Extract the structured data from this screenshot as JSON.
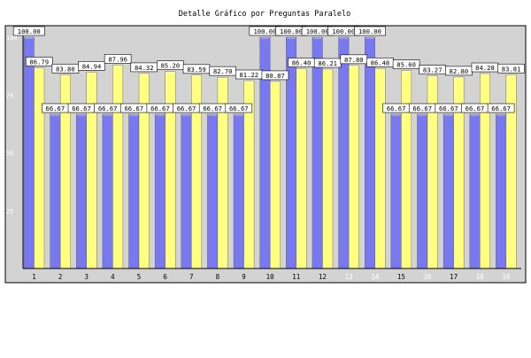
{
  "chart_data": {
    "type": "bar",
    "title": "Detalle Gráfico por Preguntas Paralelo",
    "xlabel": "",
    "ylabel": "",
    "ylim": [
      0,
      100
    ],
    "yticks": [
      25,
      50,
      75,
      100
    ],
    "grid": false,
    "categories": [
      "1",
      "2",
      "3",
      "4",
      "5",
      "6",
      "7",
      "8",
      "9",
      "10",
      "11",
      "12",
      "13",
      "14",
      "15",
      "16",
      "17",
      "18",
      "19"
    ],
    "series": [
      {
        "color": "#7878f0",
        "values": [
          100.0,
          66.67,
          66.67,
          66.67,
          66.67,
          66.67,
          66.67,
          66.67,
          66.67,
          100.0,
          100.0,
          100.0,
          100.0,
          100.0,
          66.67,
          66.67,
          66.67,
          66.67,
          66.67
        ],
        "labels": [
          "100.00",
          "66.67",
          "66.67",
          "66.67",
          "66.67",
          "66.67",
          "66.67",
          "66.67",
          "66.67",
          "100.00",
          "100.00",
          "100.00",
          "100.00",
          "100.00",
          "66.67",
          "66.67",
          "66.67",
          "66.67",
          "66.67"
        ]
      },
      {
        "color": "#ffff80",
        "values": [
          86.79,
          83.8,
          84.94,
          87.96,
          84.32,
          85.2,
          83.59,
          82.7,
          81.22,
          80.87,
          86.4,
          86.21,
          87.8,
          86.48,
          85.6,
          83.27,
          82.8,
          84.28,
          83.81
        ],
        "labels": [
          "86.79",
          "83.80",
          "84.94",
          "87.96",
          "84.32",
          "85.20",
          "83.59",
          "82.70",
          "81.22",
          "80.87",
          "86.40",
          "86.21",
          "87.80",
          "86.48",
          "85.60",
          "83.27",
          "82.80",
          "84.28",
          "83.81"
        ]
      }
    ],
    "colors": {
      "plot_background": "#d3d3d3",
      "frame": "#000000"
    }
  }
}
